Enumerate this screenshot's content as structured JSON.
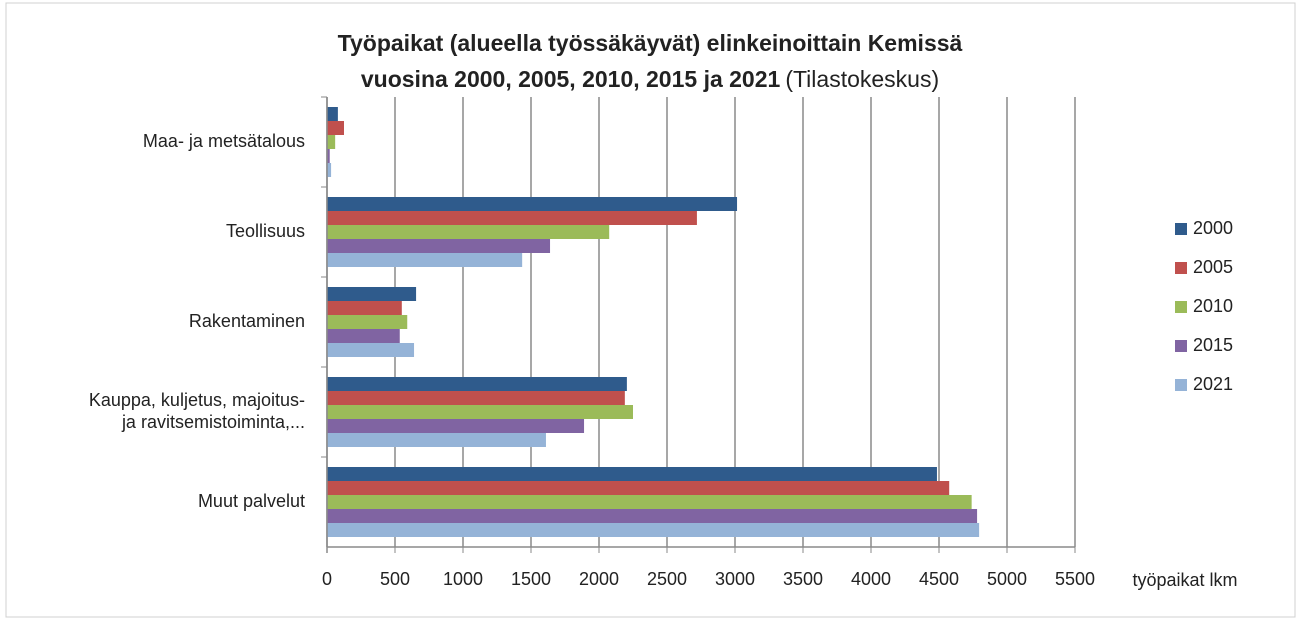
{
  "chart_data": {
    "type": "hbar",
    "title": [
      "Työpaikat (alueella työssäkäyvät) elinkeinoittain Kemissä",
      "vuosina 2000, 2005, 2010, 2015 ja 2021"
    ],
    "source": "(Tilastokeskus)",
    "x_label": "työpaikat lkm",
    "categories": [
      "Maa- ja metsätalous",
      "Teollisuus",
      "Rakentaminen",
      "Kauppa, kuljetus, majoitus-\nja ravitsemistoiminta,...",
      "Muut palvelut"
    ],
    "series": [
      {
        "name": "2000",
        "color": "#2f5b8c",
        "values": [
          80,
          3015,
          655,
          2205,
          4485
        ]
      },
      {
        "name": "2005",
        "color": "#c0504d",
        "values": [
          125,
          2720,
          550,
          2190,
          4575
        ]
      },
      {
        "name": "2010",
        "color": "#9bbb59",
        "values": [
          60,
          2075,
          590,
          2250,
          4740
        ]
      },
      {
        "name": "2015",
        "color": "#8064a2",
        "values": [
          20,
          1640,
          535,
          1890,
          4780
        ]
      },
      {
        "name": "2021",
        "color": "#95b3d7",
        "values": [
          30,
          1435,
          640,
          1610,
          4795
        ]
      }
    ],
    "xlim": [
      0,
      5500
    ],
    "xticks": [
      0,
      500,
      1000,
      1500,
      2000,
      2500,
      3000,
      3500,
      4000,
      4500,
      5000,
      5500
    ],
    "grid": true,
    "legend": "right"
  }
}
